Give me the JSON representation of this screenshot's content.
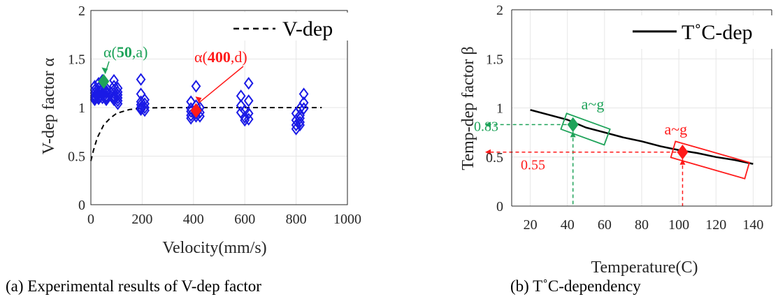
{
  "chart_data": [
    {
      "type": "scatter",
      "xlabel": "Velocity(mm/s)",
      "ylabel": "V-dep factor α",
      "xlim": [
        0,
        1000
      ],
      "ylim": [
        0,
        2
      ],
      "xticks": [
        "0",
        "200",
        "400",
        "600",
        "800",
        "1000"
      ],
      "yticks": [
        "0",
        "0.5",
        "1",
        "1.5",
        "2"
      ],
      "grid": true,
      "legend": {
        "position": "top-right",
        "label": "V-dep"
      },
      "caption": "(a)  Experimental results of V-dep factor",
      "colors": {
        "markers": "#1a1ae6",
        "green": "#1fa35a",
        "red": "#ff1a1a",
        "line": "#000000"
      },
      "line_series": {
        "name": "V-dep",
        "x": [
          0,
          10,
          25,
          50,
          75,
          100,
          150,
          200,
          300,
          400,
          600,
          900
        ],
        "y": [
          0.45,
          0.56,
          0.69,
          0.82,
          0.89,
          0.94,
          0.98,
          0.995,
          1.0,
          1.0,
          1.0,
          1.0
        ]
      },
      "scatter_series": {
        "x": [
          15,
          15,
          15,
          15,
          15,
          15,
          30,
          30,
          30,
          30,
          30,
          30,
          45,
          45,
          45,
          45,
          45,
          60,
          60,
          60,
          60,
          60,
          60,
          90,
          90,
          90,
          90,
          90,
          90,
          90,
          105,
          105,
          105,
          105,
          105,
          105,
          195,
          195,
          195,
          195,
          195,
          195,
          210,
          210,
          210,
          210,
          390,
          390,
          390,
          390,
          390,
          410,
          410,
          410,
          410,
          410,
          425,
          425,
          425,
          585,
          585,
          585,
          600,
          600,
          600,
          615,
          615,
          615,
          615,
          800,
          800,
          800,
          800,
          815,
          815,
          815,
          815,
          815,
          830,
          830,
          830
        ],
        "y": [
          1.22,
          1.18,
          1.15,
          1.12,
          1.1,
          1.08,
          1.25,
          1.2,
          1.17,
          1.14,
          1.11,
          1.09,
          1.28,
          1.18,
          1.15,
          1.13,
          1.1,
          1.2,
          1.17,
          1.15,
          1.12,
          1.1,
          1.08,
          1.28,
          1.22,
          1.18,
          1.15,
          1.12,
          1.1,
          1.08,
          1.2,
          1.16,
          1.13,
          1.1,
          1.07,
          1.04,
          1.29,
          1.14,
          1.06,
          1.03,
          1.0,
          0.98,
          1.08,
          1.04,
          1.0,
          0.97,
          1.06,
          0.99,
          0.96,
          0.92,
          0.89,
          1.22,
          1.02,
          0.97,
          0.94,
          0.91,
          1.0,
          0.95,
          0.91,
          1.12,
          1.02,
          0.95,
          0.97,
          0.9,
          0.87,
          1.25,
          1.07,
          0.94,
          0.88,
          0.94,
          0.87,
          0.82,
          0.78,
          0.99,
          0.92,
          0.89,
          0.85,
          0.82,
          1.14,
          1.05,
          0.99
        ]
      },
      "highlights": [
        {
          "label_prefix": "α(",
          "label_bold": "50",
          "label_suffix": ",a)",
          "x": 50,
          "y": 1.27,
          "color": "#1fa35a"
        },
        {
          "label_prefix": "α(",
          "label_bold": "400",
          "label_suffix": ",d)",
          "x": 410,
          "y": 0.97,
          "color": "#ff1a1a"
        }
      ]
    },
    {
      "type": "line",
      "xlabel": "Temperature(C)",
      "ylabel": "Temp-dep factor β",
      "xlim": [
        10,
        150
      ],
      "ylim": [
        0,
        2
      ],
      "xticks": [
        "20",
        "40",
        "60",
        "80",
        "100",
        "120",
        "140"
      ],
      "yticks": [
        "0",
        "0.5",
        "1",
        "1.5",
        "2"
      ],
      "grid": true,
      "legend": {
        "position": "top-right",
        "label": "T˚C-dep"
      },
      "caption": "(b)  T˚C-dependency",
      "series": {
        "name": "T˚C-dep",
        "x": [
          20,
          30,
          40,
          50,
          60,
          70,
          80,
          90,
          100,
          110,
          120,
          130,
          140
        ],
        "y": [
          0.98,
          0.93,
          0.88,
          0.8,
          0.75,
          0.7,
          0.66,
          0.61,
          0.57,
          0.54,
          0.5,
          0.47,
          0.43
        ]
      },
      "markers": [
        {
          "label": "a~g",
          "x": 43,
          "y": 0.83,
          "value_label": "0.83",
          "color": "#1fa35a"
        },
        {
          "label": "a~g",
          "x": 102,
          "y": 0.55,
          "value_label": "0.55",
          "color": "#ff1a1a"
        }
      ]
    }
  ]
}
